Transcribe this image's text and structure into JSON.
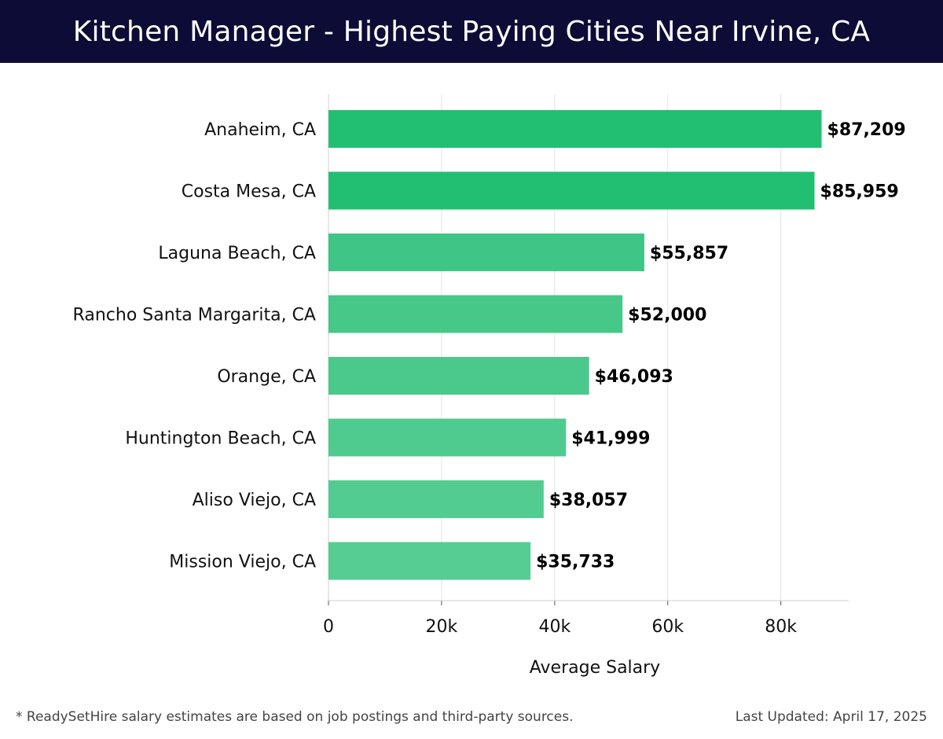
{
  "header": {
    "title": "Kitchen Manager - Highest Paying Cities Near Irvine, CA"
  },
  "chart_data": {
    "type": "bar",
    "orientation": "horizontal",
    "title": "Kitchen Manager - Highest Paying Cities Near Irvine, CA",
    "xlabel": "Average Salary",
    "ylabel": "",
    "categories": [
      "Anaheim, CA",
      "Costa Mesa, CA",
      "Laguna Beach, CA",
      "Rancho Santa Margarita, CA",
      "Orange, CA",
      "Huntington Beach, CA",
      "Aliso Viejo, CA",
      "Mission Viejo, CA"
    ],
    "values": [
      87209,
      85959,
      55857,
      52000,
      46093,
      41999,
      38057,
      35733
    ],
    "value_labels": [
      "$87,209",
      "$85,959",
      "$55,857",
      "$52,000",
      "$46,093",
      "$41,999",
      "$38,057",
      "$35,733"
    ],
    "bar_colors": [
      "#22bf72",
      "#22bf72",
      "#3fc585",
      "#47c889",
      "#4bc98c",
      "#50cb8f",
      "#52cc91",
      "#56cd93"
    ],
    "xlim": [
      0,
      92000
    ],
    "x_ticks": [
      0,
      20000,
      40000,
      60000,
      80000
    ],
    "x_tick_labels": [
      "0",
      "20k",
      "40k",
      "60k",
      "80k"
    ],
    "grid": true,
    "legend": "none"
  },
  "footer": {
    "note": "* ReadySetHire salary estimates are based on job postings and third-party sources.",
    "updated": "Last Updated: April 17, 2025"
  }
}
